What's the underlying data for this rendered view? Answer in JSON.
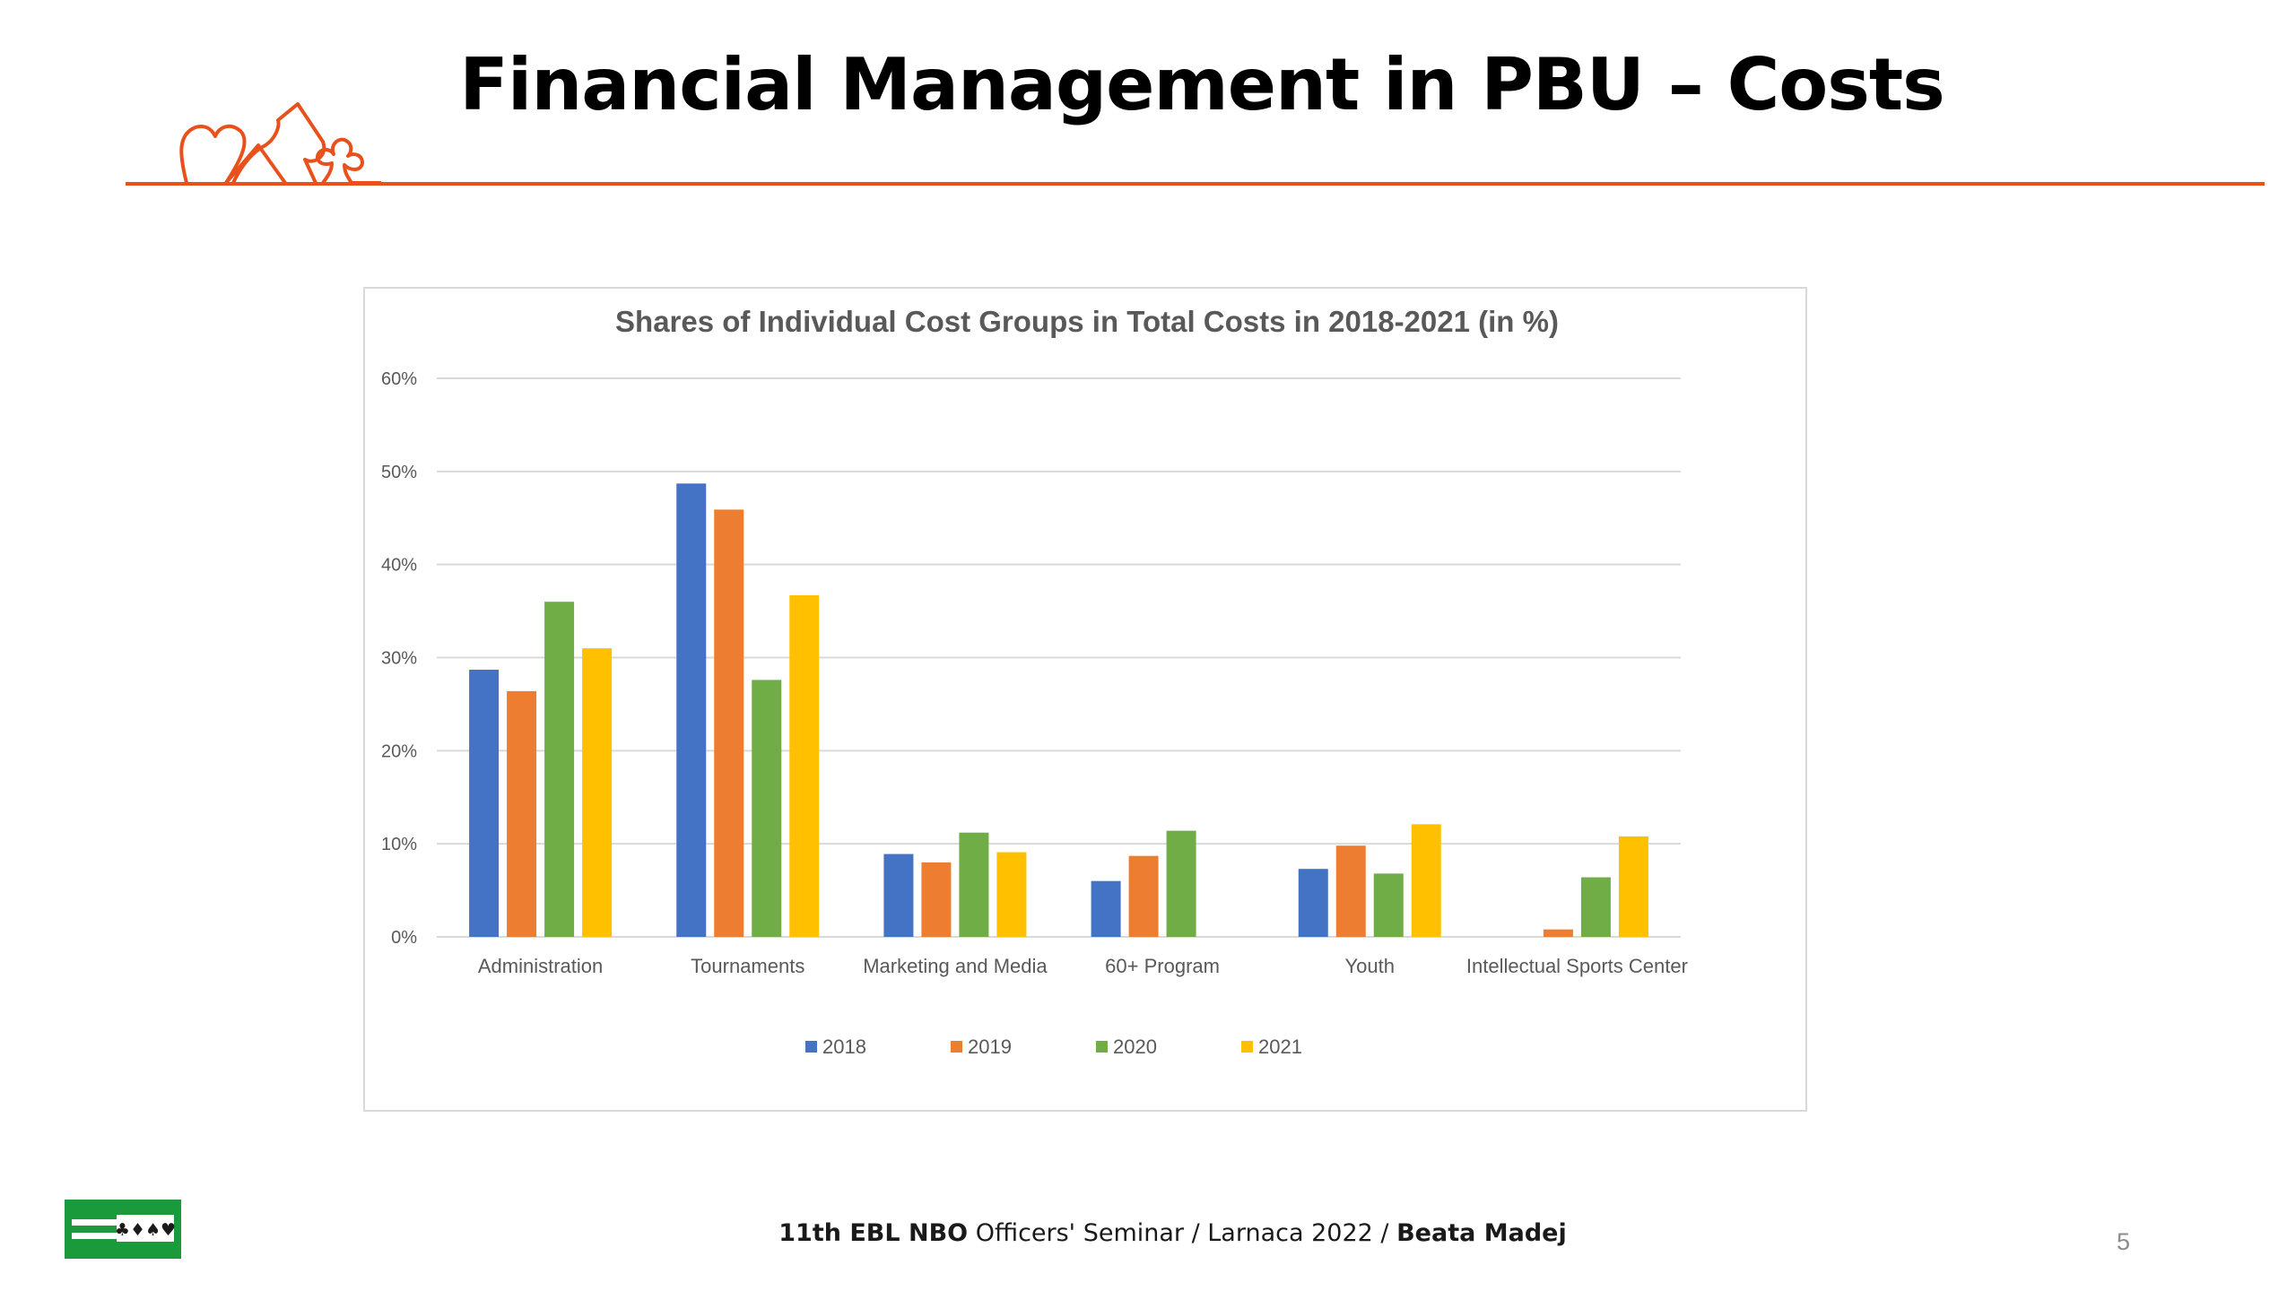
{
  "slide": {
    "title": "Financial Management in PBU – Costs",
    "footer": {
      "seminar": "11th EBL NBO",
      "officers": " Officers' Seminar / Larnaca 2022 / ",
      "author": "Beata Madej"
    },
    "page_number": "5",
    "accent_color": "#e8511c"
  },
  "chart_data": {
    "type": "bar",
    "title": "Shares of Individual Cost Groups in Total Costs in 2018-2021 (in %)",
    "xlabel": "",
    "ylabel": "",
    "categories": [
      "Administration",
      "Tournaments",
      "Marketing and Media",
      "60+ Program",
      "Youth",
      "Intellectual Sports Center"
    ],
    "ylim": [
      0,
      60
    ],
    "yticks": [
      "0%",
      "10%",
      "20%",
      "30%",
      "40%",
      "50%",
      "60%"
    ],
    "grid": true,
    "legend_position": "bottom",
    "series": [
      {
        "name": "2018",
        "color": "#4472c4",
        "values": [
          28.7,
          48.7,
          8.9,
          6.0,
          7.3,
          0
        ]
      },
      {
        "name": "2019",
        "color": "#ed7d31",
        "values": [
          26.4,
          45.9,
          8.0,
          8.7,
          9.8,
          0.8
        ]
      },
      {
        "name": "2020",
        "color": "#70ad47",
        "values": [
          36.0,
          27.6,
          11.2,
          11.4,
          6.8,
          6.4
        ]
      },
      {
        "name": "2021",
        "color": "#ffc000",
        "values": [
          31.0,
          36.7,
          9.1,
          0,
          12.1,
          10.8
        ]
      }
    ]
  }
}
